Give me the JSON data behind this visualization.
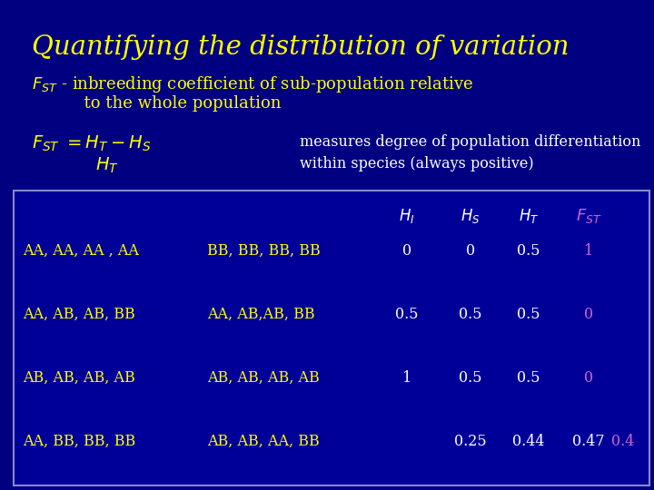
{
  "title": "Quantifying the distribution of variation",
  "title_color": "#FFFF00",
  "bg_color": "#000080",
  "table_border": "#8888CC",
  "table_fill": "#000099",
  "white": "#FFFFFF",
  "yellow": "#FFFF00",
  "purple": "#CC66CC",
  "subtitle_rest": " - inbreeding coefficient of sub-population relative",
  "subtitle_line2": "          to the whole population",
  "formula_right1": "measures degree of population differentiation",
  "formula_right2": "within species (always positive)",
  "row1_label1": "AA, AA, AA , AA",
  "row1_label2": "BB, BB, BB, BB",
  "row1_HI": "0",
  "row1_HS": "0",
  "row1_HT": "0.5",
  "row1_FST": "1",
  "row2_label1": "AA, AB, AB, BB",
  "row2_label2": "AA, AB,AB, BB",
  "row2_HI": "0.5",
  "row2_HS": "0.5",
  "row2_HT": "0.5",
  "row2_FST": "0",
  "row3_label1": "AB, AB, AB, AB",
  "row3_label2": "AB, AB, AB, AB",
  "row3_HI": "1",
  "row3_HS": "0.5",
  "row3_HT": "0.5",
  "row3_FST": "0",
  "row4_label1": "AA, BB, BB, BB",
  "row4_label2": "AB, AB, AA, BB",
  "row4_HS": "0.25",
  "row4_HT": "0.44",
  "row4_FST_white": "0.47",
  "row4_FST_purple": "0.4"
}
